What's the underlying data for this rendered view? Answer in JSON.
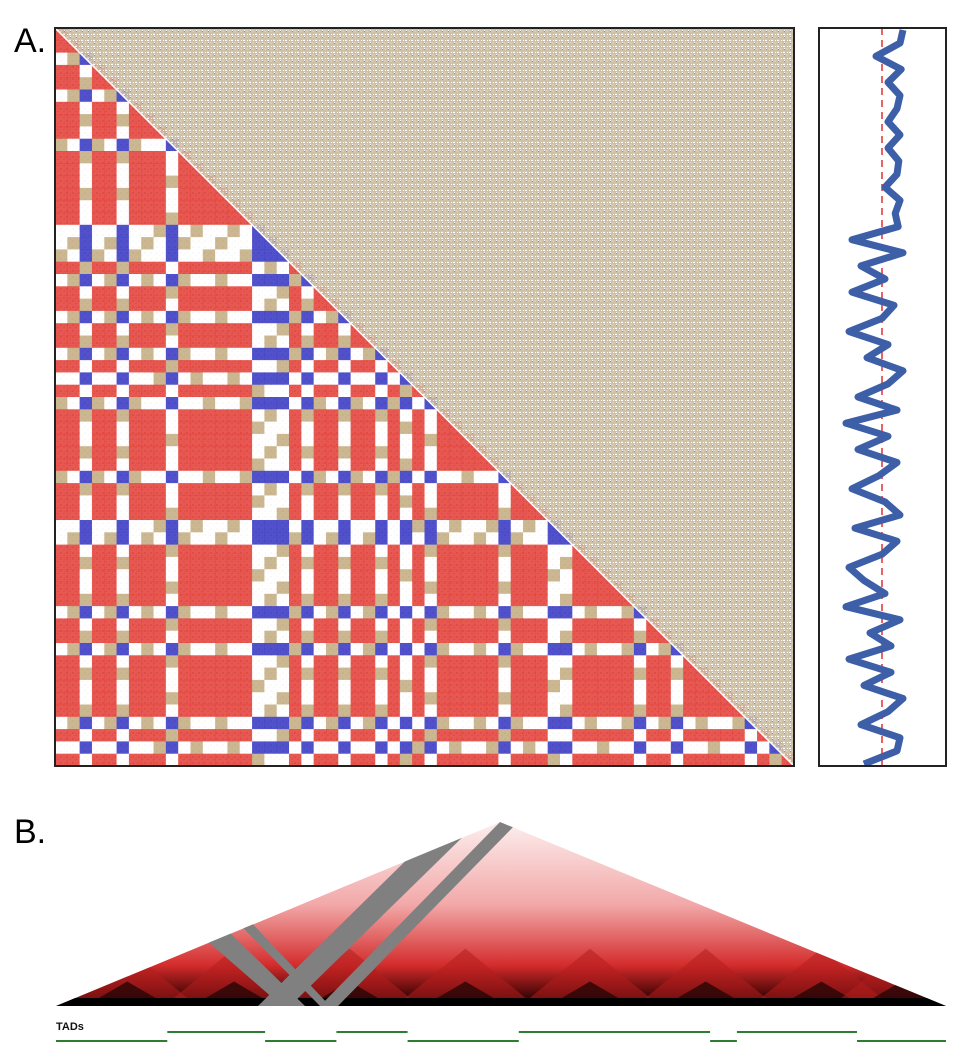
{
  "panels": {
    "a_label": "A.",
    "b_label": "B."
  },
  "tracks": {
    "tads_label": "TADs"
  },
  "colors": {
    "active_compartment": "#e5463f",
    "inactive_compartment": "#4848c8",
    "raw_contacts": "#a88e60",
    "eigenvector_line": "#3d5fa8",
    "midline": "#e03030",
    "tad_line": "#2e7d32",
    "heatmap_dark": "#000000",
    "heatmap_red": "#d42b2b",
    "gap_gray": "#808080"
  },
  "eigen_profile": [
    0.35,
    0.3,
    -0.1,
    0.32,
    0.1,
    0.3,
    0.25,
    0.1,
    0.3,
    0.1,
    0.28,
    0.25,
    0.05,
    0.3,
    0.22,
    0.27,
    -0.5,
    0.35,
    -0.35,
    0.05,
    -0.5,
    0.2,
    0.0,
    -0.55,
    0.1,
    -0.25,
    0.35,
    0.1,
    -0.4,
    0.25,
    -0.6,
    0.1,
    -0.4,
    0.25,
    -0.05,
    -0.5,
    0.05,
    0.3,
    -0.45,
    0.25,
    0.0,
    -0.55,
    -0.3,
    0.05,
    -0.6,
    0.3,
    -0.2,
    0.15,
    -0.55,
    0.15,
    -0.3,
    0.35,
    0.1,
    -0.35,
    0.3,
    0.25,
    -0.3
  ],
  "compartments": [
    1,
    1,
    0,
    1,
    1,
    0,
    1,
    1,
    1,
    0,
    1,
    1,
    1,
    1,
    1,
    1,
    0,
    0,
    0,
    1,
    0,
    1,
    1,
    0,
    1,
    1,
    0,
    1,
    0,
    1,
    0,
    1,
    1,
    1,
    1,
    1,
    0,
    1,
    1,
    1,
    0,
    0,
    1,
    1,
    1,
    1,
    1,
    0,
    1,
    1,
    0,
    1,
    1,
    1,
    1,
    1,
    0,
    1,
    0,
    1
  ],
  "tad_segments": [
    [
      0,
      0.125,
      1
    ],
    [
      0.125,
      0.235,
      0
    ],
    [
      0.235,
      0.315,
      1
    ],
    [
      0.315,
      0.395,
      0
    ],
    [
      0.395,
      0.52,
      1
    ],
    [
      0.52,
      0.735,
      0
    ],
    [
      0.735,
      0.765,
      1
    ],
    [
      0.765,
      0.9,
      0
    ],
    [
      0.9,
      1.0,
      1
    ]
  ],
  "tad_peaks": [
    0.08,
    0.2,
    0.33,
    0.46,
    0.6,
    0.73,
    0.86,
    0.95
  ]
}
